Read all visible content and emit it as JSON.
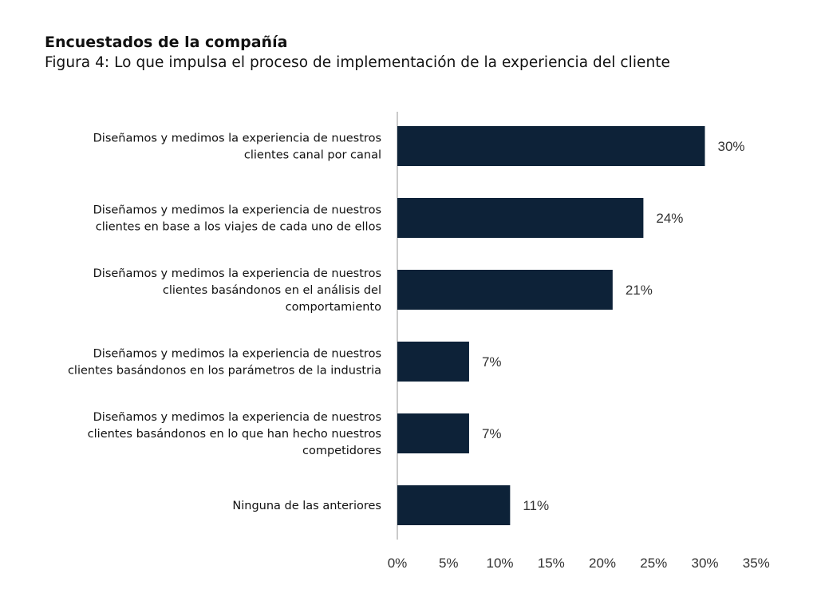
{
  "header": {
    "title": "Encuestados de la compañía",
    "subtitle": "Figura 4: Lo que impulsa el proceso de implementación de la experiencia del cliente"
  },
  "colors": {
    "bar": "#0d2238",
    "axis": "#b8b8b8"
  },
  "chart_data": {
    "type": "bar",
    "orientation": "horizontal",
    "title": "Encuestados de la compañía",
    "subtitle": "Figura 4: Lo que impulsa el proceso de implementación de la experiencia del cliente",
    "categories": [
      [
        "Diseñamos y medimos la experiencia de nuestros",
        "clientes canal por canal"
      ],
      [
        "Diseñamos y medimos la experiencia de nuestros",
        "clientes en base a los viajes de cada uno de ellos"
      ],
      [
        "Diseñamos y medimos la experiencia de nuestros",
        "clientes basándonos en el análisis del",
        "comportamiento"
      ],
      [
        "Diseñamos y medimos la experiencia de nuestros",
        "clientes basándonos en los parámetros de la industria"
      ],
      [
        "Diseñamos y medimos la experiencia de nuestros",
        "clientes basándonos en lo que han hecho nuestros",
        "competidores"
      ],
      [
        "Ninguna de las anteriores"
      ]
    ],
    "values": [
      30,
      24,
      21,
      7,
      7,
      11
    ],
    "value_labels": [
      "30%",
      "24%",
      "21%",
      "7%",
      "7%",
      "11%"
    ],
    "xlim": [
      0,
      35
    ],
    "xticks": [
      0,
      5,
      10,
      15,
      20,
      25,
      30,
      35
    ],
    "xtick_labels": [
      "0%",
      "5%",
      "10%",
      "15%",
      "20%",
      "25%",
      "30%",
      "35%"
    ],
    "xlabel": "",
    "ylabel": "",
    "grid": false
  }
}
